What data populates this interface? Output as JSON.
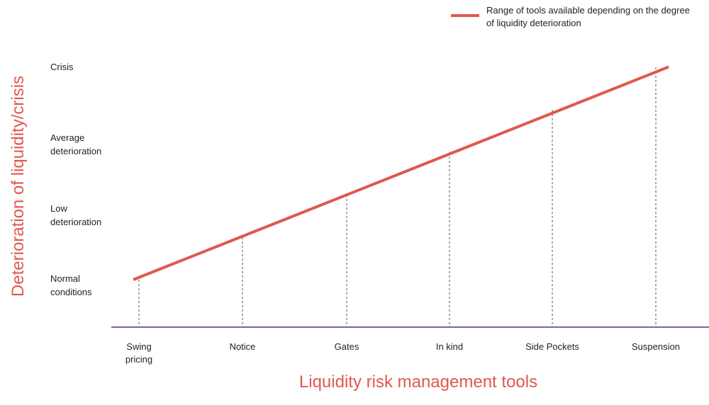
{
  "chart_data": {
    "type": "line",
    "title": "",
    "xlabel": "Liquidity risk management tools",
    "ylabel": "Deterioration of liquidity/crisis",
    "categories": [
      "Swing pricing",
      "Notice",
      "Gates",
      "In kind",
      "Side Pockets",
      "Suspension"
    ],
    "y_levels": [
      "Normal conditions",
      "Low deterioration",
      "Average deterioration",
      "Crisis"
    ],
    "series": [
      {
        "name": "Range of tools available depending on the degree of liquidity deterioration",
        "values": [
          0.08,
          0.57,
          1.06,
          1.55,
          2.04,
          2.53
        ]
      }
    ],
    "ylim": [
      0,
      3
    ],
    "grid": false,
    "legend_position": "top-right"
  },
  "colors": {
    "series_line": "#e0584f",
    "axis_line": "#5b2c8f",
    "dashed_line": "#555555",
    "axis_title": "#e0584f"
  }
}
